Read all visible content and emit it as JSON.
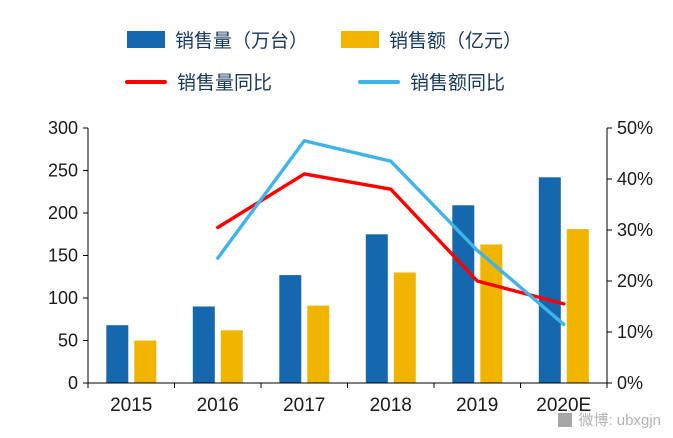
{
  "watermark": {
    "text": "微博: ubxgjn"
  },
  "colors": {
    "bar_blue": "#1568ae",
    "bar_yellow": "#f1b500",
    "line_red": "#fe0000",
    "line_lightblue": "#3fb4e9",
    "legend_text": "#17375e",
    "axis_text": "#1a1a1a"
  },
  "chart_data": {
    "type": "bar+line",
    "title": "",
    "categories": [
      "2015",
      "2016",
      "2017",
      "2018",
      "2019",
      "2020E"
    ],
    "bar_series": [
      {
        "name": "销售量（万台）",
        "axis": "left",
        "color": "#1568ae",
        "values": [
          68,
          90,
          127,
          175,
          209,
          242
        ]
      },
      {
        "name": "销售额（亿元）",
        "axis": "left",
        "color": "#f1b500",
        "values": [
          50,
          62,
          91,
          130,
          163,
          181
        ]
      }
    ],
    "line_series": [
      {
        "name": "销售量同比",
        "axis": "right",
        "color": "#fe0000",
        "values": [
          null,
          30.5,
          41,
          38,
          20,
          15.5
        ]
      },
      {
        "name": "销售额同比",
        "axis": "right",
        "color": "#3fb4e9",
        "values": [
          null,
          24.5,
          47.5,
          43.5,
          26,
          11.5
        ]
      }
    ],
    "left_axis": {
      "min": 0,
      "max": 300,
      "step": 50
    },
    "right_axis": {
      "min": 0,
      "max": 50,
      "step": 10,
      "suffix": "%"
    },
    "grid": false,
    "legend_position": "top"
  }
}
